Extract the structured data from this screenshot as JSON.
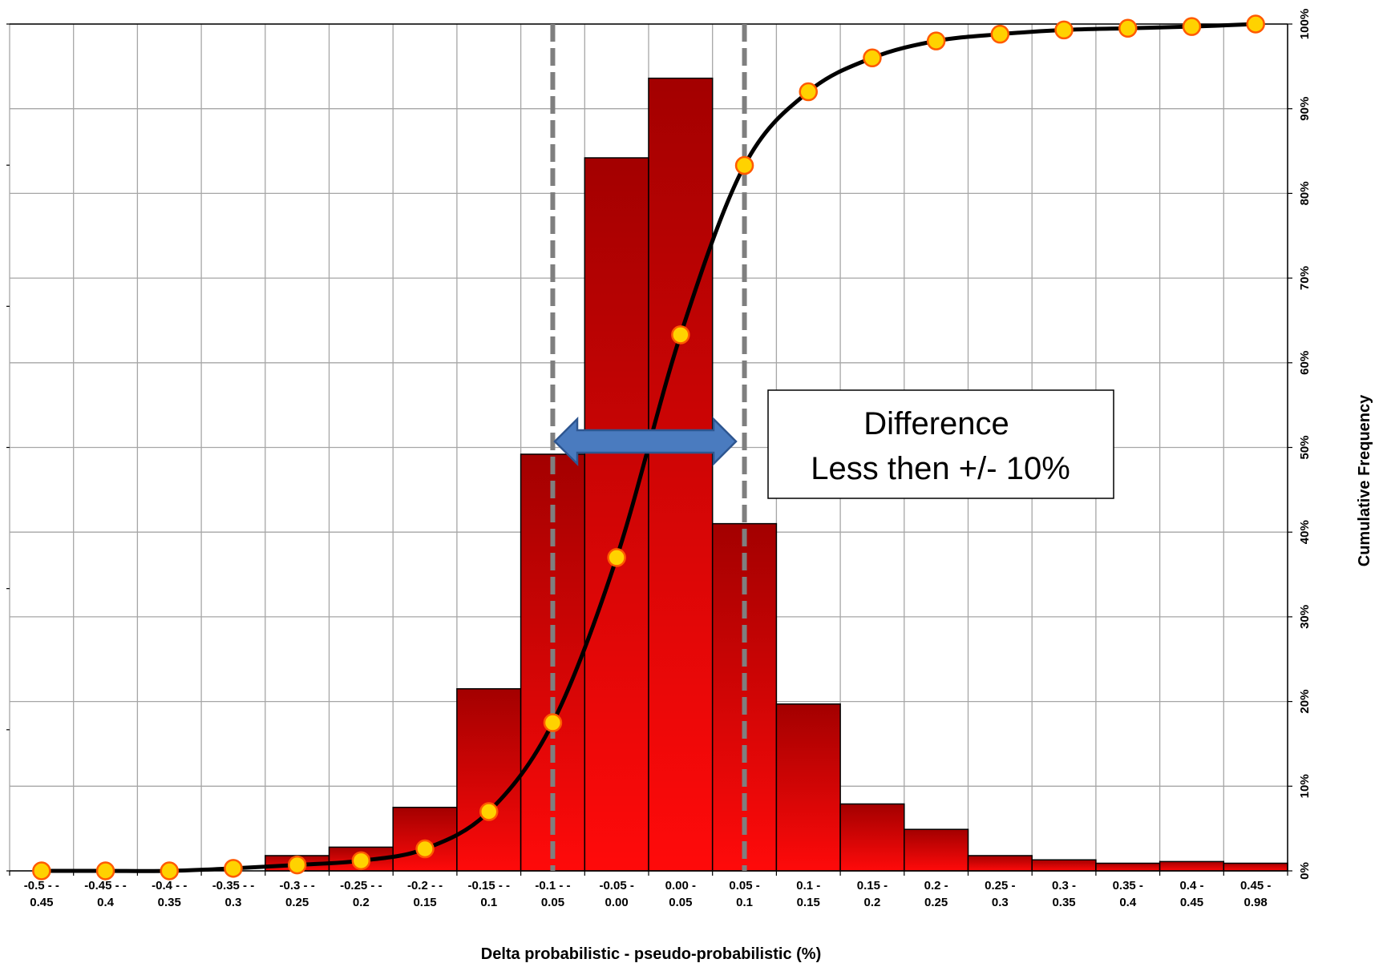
{
  "chart_data": {
    "type": "bar",
    "xlabel": "Delta probabilistic - pseudo-probabilistic (%)",
    "ylabel_right": "Cumulative Frequency",
    "categories": [
      [
        "-0.5 - -",
        "0.45"
      ],
      [
        "-0.45 - -",
        "0.4"
      ],
      [
        "-0.4 - -",
        "0.35"
      ],
      [
        "-0.35 - -",
        "0.3"
      ],
      [
        "-0.3 - -",
        "0.25"
      ],
      [
        "-0.25 - -",
        "0.2"
      ],
      [
        "-0.2 - -",
        "0.15"
      ],
      [
        "-0.15 - -",
        "0.1"
      ],
      [
        "-0.1 - -",
        "0.05"
      ],
      [
        "-0.05 -",
        "0.00"
      ],
      [
        "0.00 -",
        "0.05"
      ],
      [
        "0.05 -",
        "0.1"
      ],
      [
        "0.1 -",
        "0.15"
      ],
      [
        "0.15 -",
        "0.2"
      ],
      [
        "0.2 -",
        "0.25"
      ],
      [
        "0.25 -",
        "0.3"
      ],
      [
        "0.3 -",
        "0.35"
      ],
      [
        "0.35 -",
        "0.4"
      ],
      [
        "0.4 -",
        "0.45"
      ],
      [
        "0.45 -",
        "0.98"
      ]
    ],
    "bar_values_relative": [
      0,
      0,
      0,
      0,
      1.8,
      2.8,
      7.5,
      21.5,
      49.2,
      84.2,
      93.6,
      41.0,
      19.7,
      7.9,
      4.9,
      1.8,
      1.3,
      0.9,
      1.1,
      0.9
    ],
    "cumulative_points_pct": [
      0,
      0,
      0,
      0.3,
      0.7,
      1.2,
      2.6,
      7.0,
      17.5,
      37.0,
      63.3,
      83.3,
      92.0,
      96.0,
      98.0,
      98.8,
      99.3,
      99.5,
      99.7,
      100
    ],
    "y2_ticks": [
      "0%",
      "10%",
      "20%",
      "30%",
      "40%",
      "50%",
      "60%",
      "70%",
      "80%",
      "90%",
      "100%"
    ],
    "y2_range": [
      0,
      100
    ],
    "grid": true,
    "reference_lines_x": [
      -0.075,
      0.075
    ],
    "colors": {
      "bar_top": "#a30000",
      "bar_bottom": "#ff0a0a",
      "curve": "#000000",
      "marker_fill": "#ffd200",
      "marker_stroke": "#ff5a00",
      "reference_line": "#7f7f7f",
      "arrow_fill": "#4a7bbf",
      "arrow_stroke": "#2e5690",
      "grid": "#a6a6a6"
    },
    "annotation": {
      "line1": "Difference",
      "line2": "Less then +/- 10%"
    }
  }
}
